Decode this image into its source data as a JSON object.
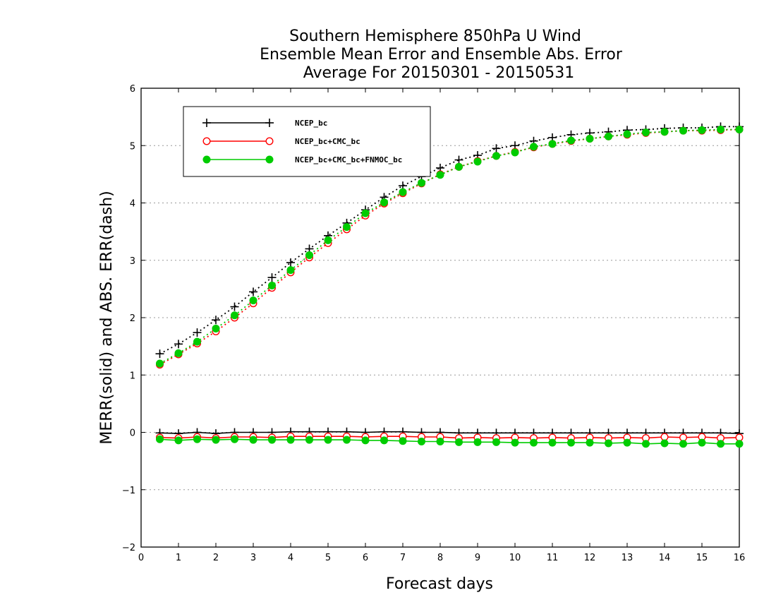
{
  "chart_data": {
    "type": "line",
    "title": [
      "Southern Hemisphere 850hPa U Wind",
      "Ensemble Mean Error and Ensemble Abs. Error",
      "Average For 20150301 - 20150531"
    ],
    "xlabel": "Forecast days",
    "ylabel": "MERR(solid) and ABS. ERR(dash)",
    "xlim": [
      0,
      16
    ],
    "ylim": [
      -2,
      6
    ],
    "xticks": [
      0,
      1,
      2,
      3,
      4,
      5,
      6,
      7,
      8,
      9,
      10,
      11,
      12,
      13,
      14,
      15,
      16
    ],
    "yticks": [
      -2,
      -1,
      0,
      1,
      2,
      3,
      4,
      5,
      6
    ],
    "ytick_labels": [
      "−2",
      "−1",
      "0",
      "1",
      "2",
      "3",
      "4",
      "5",
      "6"
    ],
    "grid": "horizontal-dotted",
    "legend_position": "top-left",
    "x": [
      0.5,
      1,
      1.5,
      2,
      2.5,
      3,
      3.5,
      4,
      4.5,
      5,
      5.5,
      6,
      6.5,
      7,
      7.5,
      8,
      8.5,
      9,
      9.5,
      10,
      10.5,
      11,
      11.5,
      12,
      12.5,
      13,
      13.5,
      14,
      14.5,
      15,
      15.5,
      16
    ],
    "series": [
      {
        "name": "NCEP_bc",
        "color": "#000000",
        "marker": "plus",
        "merr": [
          -0.01,
          -0.02,
          0.0,
          -0.02,
          0.0,
          0.0,
          0.0,
          0.01,
          0.01,
          0.01,
          0.01,
          0.0,
          0.01,
          0.01,
          0.0,
          0.0,
          -0.01,
          -0.01,
          -0.01,
          -0.01,
          -0.01,
          -0.01,
          -0.01,
          -0.01,
          -0.01,
          -0.01,
          -0.01,
          -0.01,
          -0.01,
          -0.01,
          -0.01,
          -0.02
        ],
        "abserr": [
          1.37,
          1.54,
          1.74,
          1.96,
          2.19,
          2.45,
          2.7,
          2.96,
          3.2,
          3.43,
          3.65,
          3.88,
          4.1,
          4.3,
          4.46,
          4.61,
          4.75,
          4.83,
          4.95,
          5.0,
          5.08,
          5.14,
          5.19,
          5.22,
          5.24,
          5.27,
          5.28,
          5.3,
          5.31,
          5.31,
          5.33,
          5.33
        ]
      },
      {
        "name": "NCEP_bc+CMC_bc",
        "color": "#ff0000",
        "marker": "open-circle",
        "merr": [
          -0.09,
          -0.1,
          -0.08,
          -0.1,
          -0.08,
          -0.08,
          -0.09,
          -0.07,
          -0.07,
          -0.07,
          -0.07,
          -0.08,
          -0.07,
          -0.07,
          -0.08,
          -0.08,
          -0.1,
          -0.09,
          -0.1,
          -0.09,
          -0.1,
          -0.09,
          -0.1,
          -0.09,
          -0.1,
          -0.09,
          -0.1,
          -0.08,
          -0.09,
          -0.08,
          -0.1,
          -0.09
        ],
        "abserr": [
          1.18,
          1.36,
          1.55,
          1.76,
          2.0,
          2.25,
          2.52,
          2.79,
          3.05,
          3.3,
          3.54,
          3.78,
          3.99,
          4.17,
          4.34,
          4.5,
          4.63,
          4.73,
          4.82,
          4.89,
          4.97,
          5.03,
          5.08,
          5.12,
          5.16,
          5.19,
          5.22,
          5.24,
          5.26,
          5.26,
          5.27,
          5.28
        ]
      },
      {
        "name": "NCEP_bc+CMC_bc+FNMOC_bc",
        "color": "#00cc00",
        "marker": "filled-circle",
        "merr": [
          -0.12,
          -0.14,
          -0.12,
          -0.13,
          -0.12,
          -0.13,
          -0.13,
          -0.13,
          -0.13,
          -0.13,
          -0.13,
          -0.14,
          -0.14,
          -0.15,
          -0.16,
          -0.16,
          -0.17,
          -0.17,
          -0.17,
          -0.18,
          -0.18,
          -0.18,
          -0.18,
          -0.18,
          -0.19,
          -0.18,
          -0.2,
          -0.19,
          -0.2,
          -0.18,
          -0.2,
          -0.2
        ],
        "abserr": [
          1.2,
          1.38,
          1.58,
          1.81,
          2.04,
          2.3,
          2.56,
          2.83,
          3.09,
          3.35,
          3.58,
          3.82,
          4.01,
          4.19,
          4.35,
          4.49,
          4.63,
          4.72,
          4.82,
          4.88,
          4.98,
          5.03,
          5.09,
          5.12,
          5.16,
          5.2,
          5.23,
          5.24,
          5.26,
          5.27,
          5.28,
          5.28
        ]
      }
    ]
  }
}
